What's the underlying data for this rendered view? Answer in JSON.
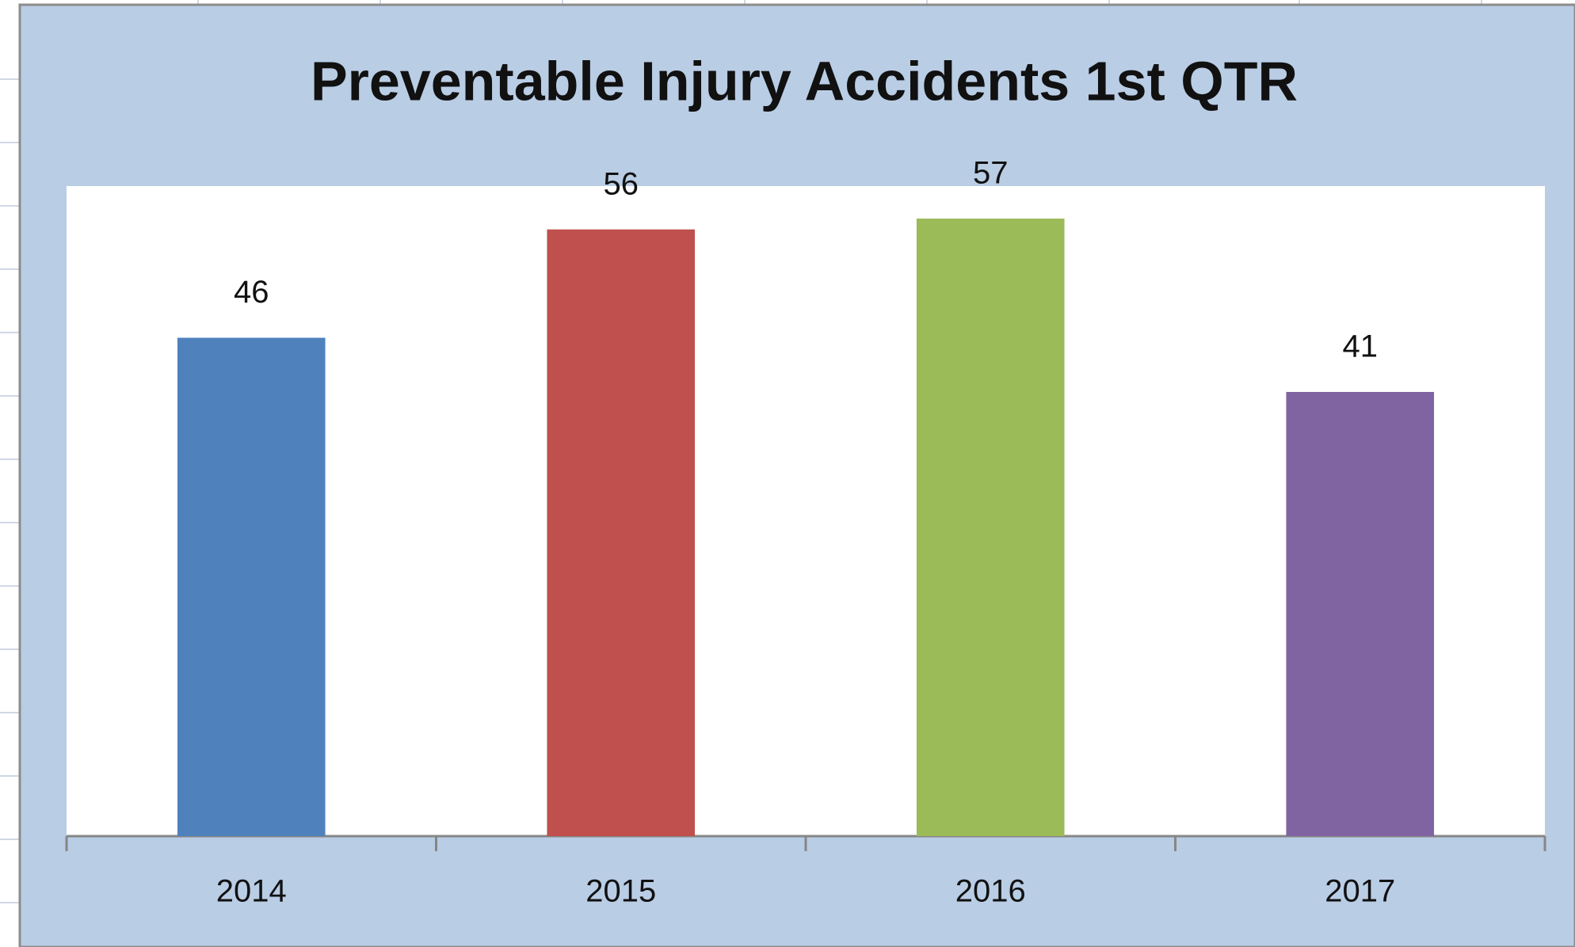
{
  "chart_data": {
    "type": "bar",
    "title": "Preventable Injury Accidents 1st QTR",
    "categories": [
      "2014",
      "2015",
      "2016",
      "2017"
    ],
    "values": [
      46,
      56,
      57,
      41
    ],
    "colors": [
      "#4f81bd",
      "#c0504d",
      "#9bbb59",
      "#8064a2"
    ],
    "ylim": [
      0,
      60
    ]
  }
}
